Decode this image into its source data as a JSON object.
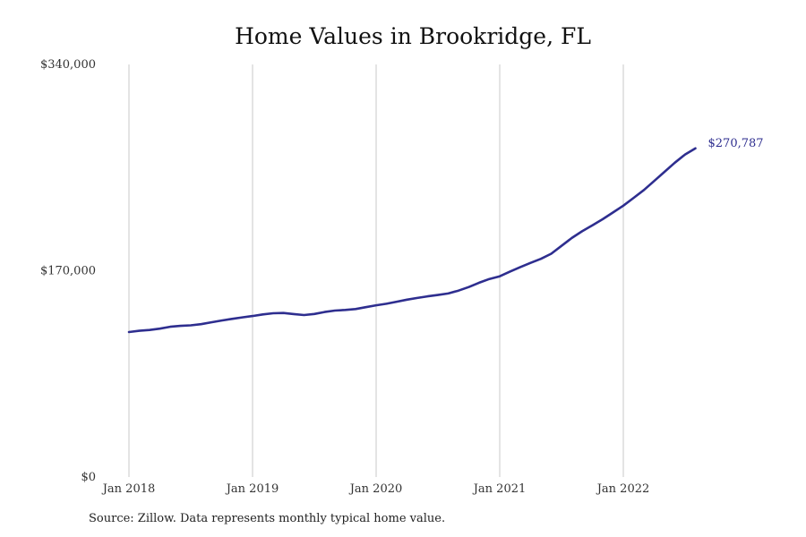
{
  "colors": {
    "line": "#2e2e8f",
    "grid": "#c8c8c8",
    "text": "#333333",
    "background": "#ffffff"
  },
  "chart_data": {
    "type": "line",
    "title": "Home Values in Brookridge, FL",
    "xlabel": "",
    "ylabel": "",
    "source": "Source: Zillow. Data represents monthly typical home value.",
    "ylim": [
      0,
      340000
    ],
    "y_ticks": [
      0,
      170000,
      340000
    ],
    "y_tick_labels": [
      "$0",
      "$170,000",
      "$340,000"
    ],
    "x_ticks": [
      "2018-01",
      "2019-01",
      "2020-01",
      "2021-01",
      "2022-01"
    ],
    "x_tick_labels": [
      "Jan 2018",
      "Jan 2019",
      "Jan 2020",
      "Jan 2021",
      "Jan 2022"
    ],
    "grid": "vertical at x ticks",
    "end_label": "$270,787",
    "series": [
      {
        "x": [
          "2018-01",
          "2018-02",
          "2018-03",
          "2018-04",
          "2018-05",
          "2018-06",
          "2018-07",
          "2018-08",
          "2018-09",
          "2018-10",
          "2018-11",
          "2018-12",
          "2019-01",
          "2019-02",
          "2019-03",
          "2019-04",
          "2019-05",
          "2019-06",
          "2019-07",
          "2019-08",
          "2019-09",
          "2019-10",
          "2019-11",
          "2019-12",
          "2020-01",
          "2020-02",
          "2020-03",
          "2020-04",
          "2020-05",
          "2020-06",
          "2020-07",
          "2020-08",
          "2020-09",
          "2020-10",
          "2020-11",
          "2020-12",
          "2021-01",
          "2021-02",
          "2021-03",
          "2021-04",
          "2021-05",
          "2021-06",
          "2021-07",
          "2021-08",
          "2021-09",
          "2021-10",
          "2021-11",
          "2021-12",
          "2022-01",
          "2022-02",
          "2022-03",
          "2022-04",
          "2022-05",
          "2022-06",
          "2022-07",
          "2022-08"
        ],
        "values": [
          119500,
          120500,
          121200,
          122300,
          123800,
          124600,
          125000,
          126000,
          127500,
          129000,
          130300,
          131600,
          132700,
          134000,
          135000,
          135200,
          134300,
          133500,
          134400,
          136000,
          137200,
          137700,
          138400,
          140000,
          141500,
          142800,
          144500,
          146200,
          147600,
          148900,
          150000,
          151300,
          153600,
          156600,
          160100,
          163200,
          165400,
          169300,
          173000,
          176500,
          179800,
          184000,
          190500,
          197000,
          202500,
          207500,
          212500,
          218000,
          223600,
          230000,
          236500,
          244000,
          251500,
          259000,
          265800,
          270787
        ]
      }
    ]
  }
}
